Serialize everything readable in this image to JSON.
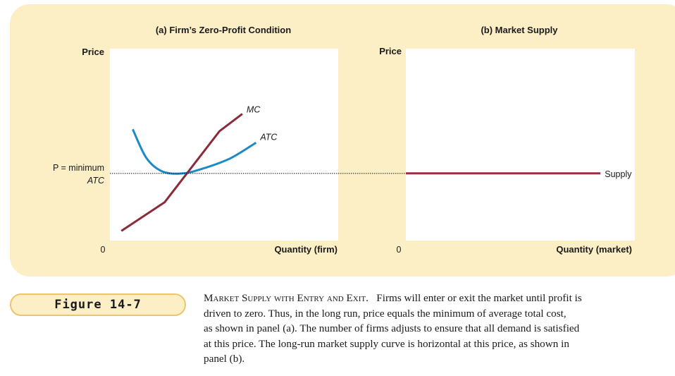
{
  "colors": {
    "panel_background": "#fcefc6",
    "mc_curve": "#8b2a3a",
    "atc_curve": "#1a8ac8",
    "supply_curve": "#9b2f42",
    "badge_border": "#efc46a"
  },
  "chart_data": [
    {
      "type": "line",
      "panel": "a",
      "title": "(a) Firm’s Zero-Profit Condition",
      "xlabel": "Quantity (firm)",
      "ylabel": "Price",
      "origin_label": "0",
      "xlim": [
        0,
        10
      ],
      "ylim": [
        0,
        10
      ],
      "grid": false,
      "price_label_line1": "P = minimum",
      "price_label_line2": "ATC",
      "price_level": 3.5,
      "series": [
        {
          "name": "MC",
          "x": [
            0.5,
            2.4,
            4.8,
            5.8
          ],
          "y": [
            0.5,
            2.0,
            5.7,
            6.6
          ]
        },
        {
          "name": "ATC",
          "x": [
            1.0,
            1.6,
            2.3,
            3.2,
            4.2,
            5.3,
            6.4
          ],
          "y": [
            5.8,
            4.3,
            3.6,
            3.5,
            3.8,
            4.3,
            5.1
          ]
        }
      ]
    },
    {
      "type": "line",
      "panel": "b",
      "title": "(b) Market Supply",
      "xlabel": "Quantity (market)",
      "ylabel": "Price",
      "origin_label": "0",
      "xlim": [
        0,
        10
      ],
      "ylim": [
        0,
        10
      ],
      "grid": false,
      "series": [
        {
          "name": "Supply",
          "x": [
            0,
            8.5
          ],
          "y": [
            3.5,
            3.5
          ]
        }
      ]
    }
  ],
  "figure_label": "Figure 14-7",
  "caption": {
    "heading": "Market Supply with Entry and Exit.",
    "first_line_rest": "Firms will enter or exit the market until profit is",
    "lines": [
      "driven to zero. Thus, in the long run, price equals the minimum of average total cost,",
      "as shown in panel (a). The number of firms adjusts to ensure that all demand is satisfied",
      "at this price. The long-run market supply curve is horizontal at this price, as shown in",
      "panel (b)."
    ]
  }
}
